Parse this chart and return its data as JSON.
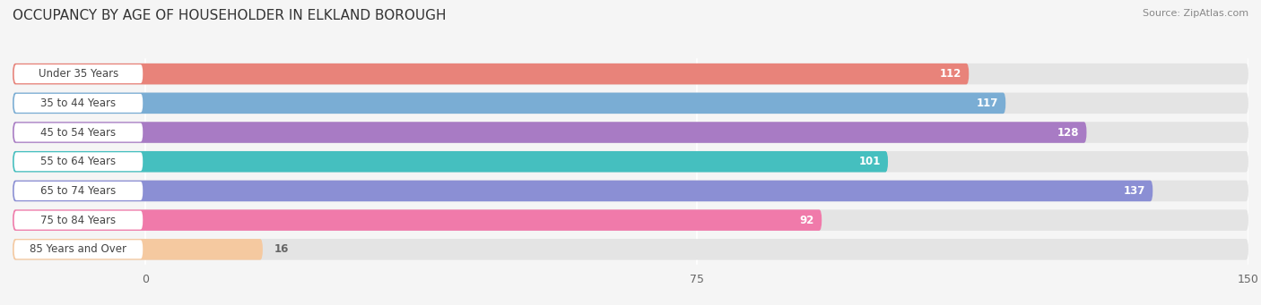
{
  "title": "OCCUPANCY BY AGE OF HOUSEHOLDER IN ELKLAND BOROUGH",
  "source": "Source: ZipAtlas.com",
  "categories": [
    "Under 35 Years",
    "35 to 44 Years",
    "45 to 54 Years",
    "55 to 64 Years",
    "65 to 74 Years",
    "75 to 84 Years",
    "85 Years and Over"
  ],
  "values": [
    112,
    117,
    128,
    101,
    137,
    92,
    16
  ],
  "bar_colors": [
    "#e8837a",
    "#7aadd4",
    "#a87bc4",
    "#45bfbf",
    "#8b8fd4",
    "#f07aaa",
    "#f5c9a0"
  ],
  "xlim_data": [
    0,
    150
  ],
  "xticks": [
    0,
    75,
    150
  ],
  "title_fontsize": 11,
  "label_fontsize": 8.5,
  "value_fontsize": 8.5,
  "background_color": "#f5f5f5",
  "bar_background_color": "#e4e4e4",
  "label_bg_color": "#ffffff"
}
